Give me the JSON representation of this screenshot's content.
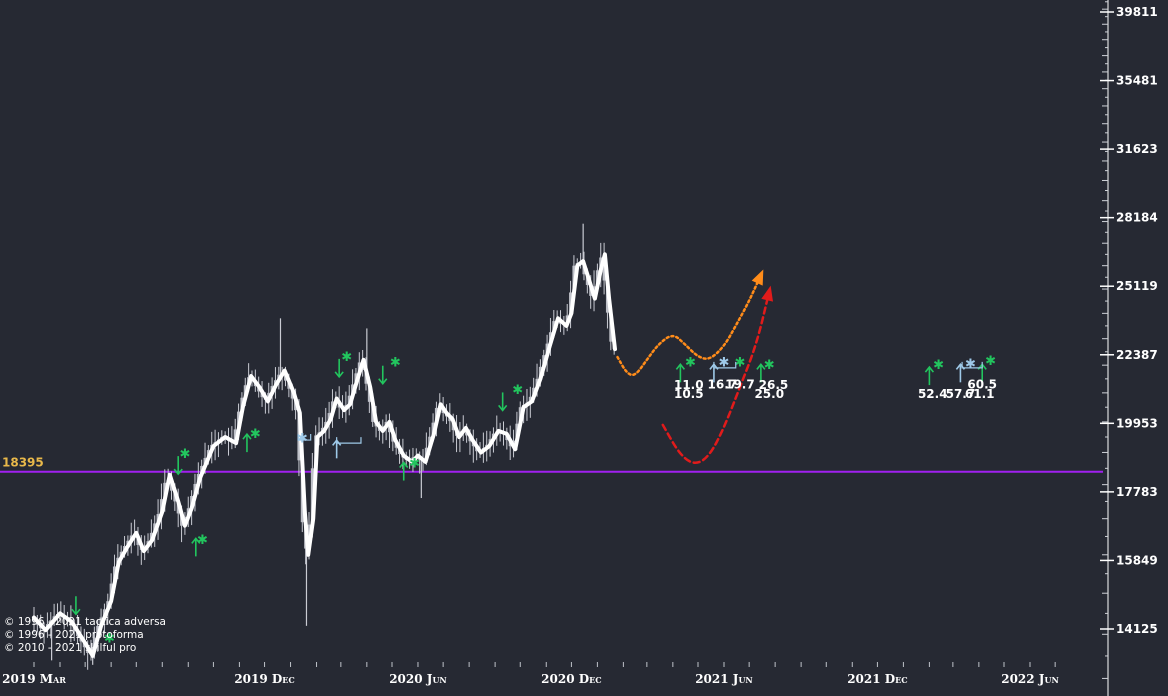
{
  "chart_data": {
    "type": "candlestick",
    "y_scale": "log",
    "ylim": [
      13300,
      41500
    ],
    "xlim": [
      "2019-03-01",
      "2022-07-31"
    ],
    "y_ticks": [
      "39811",
      "35481",
      "31623",
      "28184",
      "25119",
      "22387",
      "19953",
      "17783",
      "15849",
      "14125"
    ],
    "x_ticks": [
      {
        "label": "2019 Mar",
        "date": "2019-03-01"
      },
      {
        "label": "2019 Dec",
        "date": "2019-12-01"
      },
      {
        "label": "2020 Jun",
        "date": "2020-06-01"
      },
      {
        "label": "2020 Dec",
        "date": "2020-12-01"
      },
      {
        "label": "2021 Jun",
        "date": "2021-06-01"
      },
      {
        "label": "2021 Dec",
        "date": "2021-12-01"
      },
      {
        "label": "2022 Jun",
        "date": "2022-06-01"
      }
    ],
    "level": {
      "value": 18395,
      "label": "18395",
      "color": "#a020f0",
      "label_color": "#e8b84a"
    },
    "price_path": [
      [
        "2019-03-01",
        14400
      ],
      [
        "2019-03-15",
        14100
      ],
      [
        "2019-04-01",
        14500
      ],
      [
        "2019-04-15",
        14300
      ],
      [
        "2019-05-01",
        13800
      ],
      [
        "2019-05-10",
        13500
      ],
      [
        "2019-05-20",
        14200
      ],
      [
        "2019-06-01",
        14800
      ],
      [
        "2019-06-10",
        15800
      ],
      [
        "2019-06-20",
        16200
      ],
      [
        "2019-07-01",
        16600
      ],
      [
        "2019-07-10",
        16100
      ],
      [
        "2019-07-20",
        16400
      ],
      [
        "2019-08-01",
        17200
      ],
      [
        "2019-08-10",
        18300
      ],
      [
        "2019-08-20",
        17500
      ],
      [
        "2019-08-28",
        16800
      ],
      [
        "2019-09-05",
        17300
      ],
      [
        "2019-09-15",
        18200
      ],
      [
        "2019-10-01",
        19200
      ],
      [
        "2019-10-15",
        19500
      ],
      [
        "2019-10-28",
        19300
      ],
      [
        "2019-11-05",
        20500
      ],
      [
        "2019-11-15",
        21600
      ],
      [
        "2019-11-25",
        21200
      ],
      [
        "2019-12-05",
        20700
      ],
      [
        "2019-12-15",
        21300
      ],
      [
        "2019-12-25",
        21800
      ],
      [
        "2020-01-05",
        21000
      ],
      [
        "2020-01-12",
        20300
      ],
      [
        "2020-01-18",
        17200
      ],
      [
        "2020-01-22",
        16000
      ],
      [
        "2020-01-28",
        17000
      ],
      [
        "2020-02-02",
        19500
      ],
      [
        "2020-02-10",
        19700
      ],
      [
        "2020-02-18",
        20100
      ],
      [
        "2020-02-25",
        20800
      ],
      [
        "2020-03-05",
        20400
      ],
      [
        "2020-03-12",
        20600
      ],
      [
        "2020-03-20",
        21400
      ],
      [
        "2020-03-28",
        22200
      ],
      [
        "2020-04-05",
        21200
      ],
      [
        "2020-04-12",
        20000
      ],
      [
        "2020-04-20",
        19700
      ],
      [
        "2020-04-28",
        20000
      ],
      [
        "2020-05-05",
        19400
      ],
      [
        "2020-05-15",
        18900
      ],
      [
        "2020-05-25",
        18700
      ],
      [
        "2020-06-01",
        18900
      ],
      [
        "2020-06-10",
        18700
      ],
      [
        "2020-06-20",
        19600
      ],
      [
        "2020-06-28",
        20600
      ],
      [
        "2020-07-05",
        20300
      ],
      [
        "2020-07-12",
        20100
      ],
      [
        "2020-07-20",
        19500
      ],
      [
        "2020-07-28",
        19800
      ],
      [
        "2020-08-05",
        19400
      ],
      [
        "2020-08-15",
        19000
      ],
      [
        "2020-08-25",
        19200
      ],
      [
        "2020-09-05",
        19700
      ],
      [
        "2020-09-15",
        19600
      ],
      [
        "2020-09-25",
        19100
      ],
      [
        "2020-10-05",
        20500
      ],
      [
        "2020-10-15",
        20700
      ],
      [
        "2020-10-25",
        21500
      ],
      [
        "2020-11-05",
        22700
      ],
      [
        "2020-11-15",
        23800
      ],
      [
        "2020-11-25",
        23500
      ],
      [
        "2020-12-01",
        24000
      ],
      [
        "2020-12-08",
        26000
      ],
      [
        "2020-12-15",
        26200
      ],
      [
        "2020-12-22",
        25400
      ],
      [
        "2020-12-29",
        24600
      ],
      [
        "2021-01-05",
        25800
      ],
      [
        "2021-01-10",
        26500
      ],
      [
        "2021-01-15",
        24600
      ],
      [
        "2021-01-22",
        22600
      ]
    ],
    "wick_outliers": [
      {
        "date": "2019-03-22",
        "low": 13400
      },
      {
        "date": "2019-05-10",
        "low": 13300
      },
      {
        "date": "2019-12-20",
        "high": 23800
      },
      {
        "date": "2020-01-20",
        "low": 14200
      },
      {
        "date": "2020-04-01",
        "high": 23400
      },
      {
        "date": "2020-06-05",
        "low": 17600
      },
      {
        "date": "2020-12-15",
        "high": 27900
      }
    ],
    "projections": [
      {
        "name": "orange",
        "color": "#ff8c1a",
        "points": [
          [
            "2021-01-25",
            22300
          ],
          [
            "2021-02-05",
            21700
          ],
          [
            "2021-02-15",
            21600
          ],
          [
            "2021-03-01",
            22200
          ],
          [
            "2021-03-15",
            22800
          ],
          [
            "2021-04-01",
            23200
          ],
          [
            "2021-04-15",
            22800
          ],
          [
            "2021-05-01",
            22300
          ],
          [
            "2021-05-15",
            22200
          ],
          [
            "2021-06-01",
            22700
          ],
          [
            "2021-06-15",
            23500
          ],
          [
            "2021-07-01",
            24500
          ],
          [
            "2021-07-15",
            25600
          ]
        ]
      },
      {
        "name": "red",
        "color": "#e11b1b",
        "points": [
          [
            "2021-03-20",
            19900
          ],
          [
            "2021-04-10",
            18900
          ],
          [
            "2021-04-28",
            18600
          ],
          [
            "2021-05-15",
            18900
          ],
          [
            "2021-06-01",
            19800
          ],
          [
            "2021-06-20",
            21200
          ],
          [
            "2021-07-10",
            22800
          ],
          [
            "2021-07-25",
            24900
          ]
        ]
      }
    ],
    "signals": [
      {
        "date": "2019-04-20",
        "price": 14700,
        "arrow": "down",
        "color": "#22c55e"
      },
      {
        "date": "2019-05-30",
        "price": 13900,
        "arrow": "star",
        "color": "#22c55e"
      },
      {
        "date": "2019-08-20",
        "price": 18600,
        "arrow": "down",
        "color": "#22c55e"
      },
      {
        "date": "2019-08-28",
        "price": 18950,
        "arrow": "star",
        "color": "#22c55e"
      },
      {
        "date": "2019-09-10",
        "price": 16200,
        "arrow": "up",
        "color": "#22c55e"
      },
      {
        "date": "2019-09-18",
        "price": 16400,
        "arrow": "star",
        "color": "#22c55e"
      },
      {
        "date": "2019-11-10",
        "price": 19300,
        "arrow": "up",
        "color": "#22c55e"
      },
      {
        "date": "2019-11-20",
        "price": 19600,
        "arrow": "star",
        "color": "#22c55e"
      },
      {
        "date": "2020-01-15",
        "price": 19450,
        "arrow": "star",
        "color": "#9ec9e8"
      },
      {
        "date": "2020-02-25",
        "price": 19100,
        "arrow": "up",
        "color": "#9ec9e8"
      },
      {
        "date": "2020-02-28",
        "price": 21900,
        "arrow": "down",
        "color": "#22c55e"
      },
      {
        "date": "2020-03-08",
        "price": 22300,
        "arrow": "star",
        "color": "#22c55e"
      },
      {
        "date": "2020-04-20",
        "price": 21650,
        "arrow": "down",
        "color": "#22c55e"
      },
      {
        "date": "2020-05-05",
        "price": 22100,
        "arrow": "star",
        "color": "#22c55e"
      },
      {
        "date": "2020-05-15",
        "price": 18400,
        "arrow": "up",
        "color": "#22c55e"
      },
      {
        "date": "2020-05-28",
        "price": 18650,
        "arrow": "star",
        "color": "#22c55e"
      },
      {
        "date": "2020-09-10",
        "price": 20700,
        "arrow": "down",
        "color": "#22c55e"
      },
      {
        "date": "2020-09-28",
        "price": 21100,
        "arrow": "star",
        "color": "#22c55e"
      },
      {
        "date": "2021-04-10",
        "price": 21700,
        "arrow": "up",
        "color": "#22c55e"
      },
      {
        "date": "2021-04-22",
        "price": 22100,
        "arrow": "star",
        "color": "#22c55e"
      },
      {
        "date": "2021-05-20",
        "price": 21700,
        "arrow": "up",
        "color": "#9ec9e8"
      },
      {
        "date": "2021-06-01",
        "price": 22100,
        "arrow": "star",
        "color": "#9ec9e8"
      },
      {
        "date": "2021-06-20",
        "price": 22100,
        "arrow": "star",
        "color": "#22c55e"
      },
      {
        "date": "2021-07-15",
        "price": 21700,
        "arrow": "up",
        "color": "#22c55e"
      },
      {
        "date": "2021-07-25",
        "price": 22000,
        "arrow": "star",
        "color": "#22c55e"
      },
      {
        "date": "2022-02-01",
        "price": 21600,
        "arrow": "up",
        "color": "#22c55e"
      },
      {
        "date": "2022-02-12",
        "price": 22000,
        "arrow": "star",
        "color": "#22c55e"
      },
      {
        "date": "2022-03-10",
        "price": 21700,
        "arrow": "up",
        "color": "#9ec9e8"
      },
      {
        "date": "2022-03-22",
        "price": 22050,
        "arrow": "star",
        "color": "#9ec9e8"
      },
      {
        "date": "2022-04-05",
        "price": 21700,
        "arrow": "up",
        "color": "#22c55e"
      },
      {
        "date": "2022-04-15",
        "price": 22150,
        "arrow": "star",
        "color": "#22c55e"
      }
    ],
    "brackets": [
      {
        "from": "2020-01-10",
        "to": "2020-01-25",
        "price": 19400
      },
      {
        "from": "2020-02-25",
        "to": "2020-03-25",
        "price": 19300
      },
      {
        "from": "2021-05-20",
        "to": "2021-06-15",
        "price": 21900
      },
      {
        "from": "2022-03-12",
        "to": "2022-04-05",
        "price": 21900
      }
    ],
    "annotations": [
      {
        "text": "11.0",
        "date": "2021-04-20",
        "price": 21280
      },
      {
        "text": "10.5",
        "date": "2021-04-20",
        "price": 20960
      },
      {
        "text": "16.7",
        "date": "2021-05-30",
        "price": 21300
      },
      {
        "text": "19.7",
        "date": "2021-06-20",
        "price": 21300
      },
      {
        "text": "26.5",
        "date": "2021-07-30",
        "price": 21280
      },
      {
        "text": "25.0",
        "date": "2021-07-25",
        "price": 20960
      },
      {
        "text": "52.4",
        "date": "2022-02-05",
        "price": 20960
      },
      {
        "text": "57.7",
        "date": "2022-03-10",
        "price": 20960
      },
      {
        "text": "61.1",
        "date": "2022-04-02",
        "price": 20960
      },
      {
        "text": "60.5",
        "date": "2022-04-05",
        "price": 21300
      }
    ],
    "copyright": [
      "© 1996 - 2021 tactica adversa",
      "© 1996 - 2021 protoforma",
      "© 2010 - 2021 skilful pro"
    ]
  }
}
